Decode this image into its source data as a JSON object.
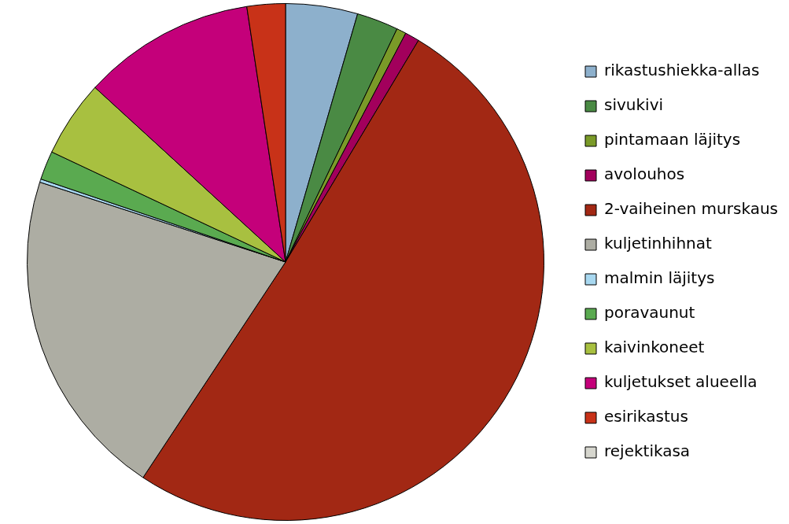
{
  "chart_data": {
    "type": "pie",
    "categories": [
      "rikastushiekka-allas",
      "sivukivi",
      "pintamaan läjitys",
      "avolouhos",
      "2-vaiheinen murskaus",
      "kuljetinhihnat",
      "malmin läjitys",
      "poravaunut",
      "kaivinkoneet",
      "kuljetukset alueella",
      "esirikastus",
      "rejektikasa"
    ],
    "values": [
      4.5,
      2.6,
      0.6,
      0.9,
      50.7,
      20.7,
      0.2,
      1.8,
      4.8,
      10.8,
      2.4,
      0
    ],
    "colors": [
      "#8db0cc",
      "#4a8a44",
      "#7a9a28",
      "#a2005c",
      "#a22814",
      "#adada3",
      "#a8d8f0",
      "#5aaa50",
      "#a8c040",
      "#c4007a",
      "#c83218",
      "#d6d6ce"
    ],
    "legend": "right"
  }
}
